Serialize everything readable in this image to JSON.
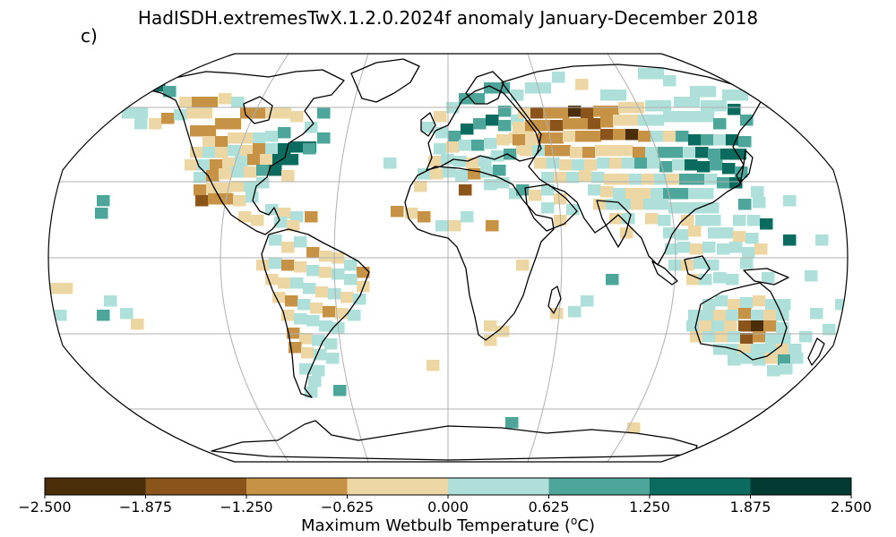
{
  "title": "HadISDH.extremesTwX.1.2.0.2024f anomaly January-December 2018",
  "panel_label": "c)",
  "colorbar": {
    "label": "Maximum Wetbulb Temperature (",
    "label_unit_sup": "o",
    "label_unit_end": "C)",
    "ticks": [
      "−2.500",
      "−1.875",
      "−1.250",
      "−0.625",
      "0.000",
      "0.625",
      "1.250",
      "1.875",
      "2.500"
    ],
    "tick_values": [
      -2.5,
      -1.875,
      -1.25,
      -0.625,
      0.0,
      0.625,
      1.25,
      1.875,
      2.5
    ],
    "colors": [
      "#4a2e0a",
      "#8b541a",
      "#c69245",
      "#ecd7a4",
      "#aedfd8",
      "#4ea59a",
      "#0c6b5f",
      "#013a30"
    ]
  },
  "map": {
    "projection": "Robinson",
    "graticule": true,
    "coastlines": true
  }
}
